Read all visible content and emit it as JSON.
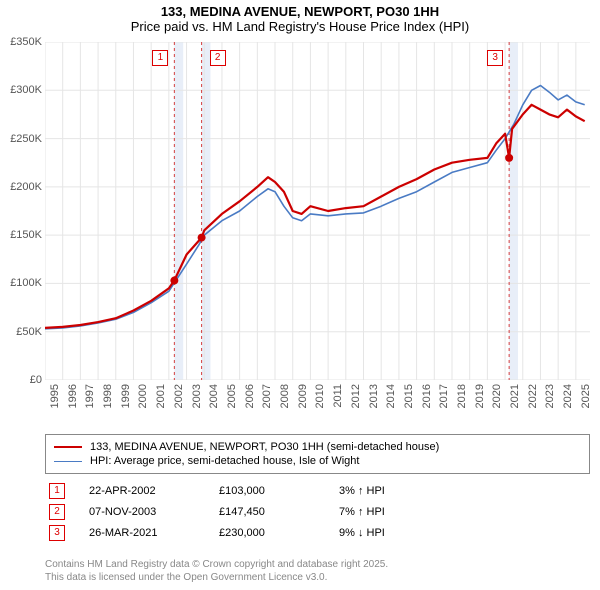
{
  "title": {
    "line1": "133, MEDINA AVENUE, NEWPORT, PO30 1HH",
    "line2": "Price paid vs. HM Land Registry's House Price Index (HPI)",
    "fontsize": 13
  },
  "chart": {
    "type": "line",
    "background_color": "#ffffff",
    "grid_color": "#e5e5e5",
    "text_color": "#555555",
    "xlim": [
      1995,
      2025.8
    ],
    "ylim": [
      0,
      350000
    ],
    "ytick_step": 50000,
    "ytick_labels": [
      "£0",
      "£50K",
      "£100K",
      "£150K",
      "£200K",
      "£250K",
      "£300K",
      "£350K"
    ],
    "xtick_step": 1,
    "xtick_labels": [
      "1995",
      "1996",
      "1997",
      "1998",
      "1999",
      "2000",
      "2001",
      "2002",
      "2003",
      "2004",
      "2005",
      "2006",
      "2007",
      "2008",
      "2009",
      "2010",
      "2011",
      "2012",
      "2013",
      "2014",
      "2015",
      "2016",
      "2017",
      "2018",
      "2019",
      "2020",
      "2021",
      "2022",
      "2023",
      "2024",
      "2025"
    ],
    "series": [
      {
        "name": "133, MEDINA AVENUE, NEWPORT, PO30 1HH (semi-detached house)",
        "color": "#cc0000",
        "line_width": 2.2,
        "data": [
          [
            1995,
            54000
          ],
          [
            1996,
            55000
          ],
          [
            1997,
            57000
          ],
          [
            1998,
            60000
          ],
          [
            1999,
            64000
          ],
          [
            2000,
            72000
          ],
          [
            2001,
            82000
          ],
          [
            2002,
            95000
          ],
          [
            2002.31,
            103000
          ],
          [
            2003,
            130000
          ],
          [
            2003.85,
            147450
          ],
          [
            2004,
            155000
          ],
          [
            2005,
            172000
          ],
          [
            2006,
            185000
          ],
          [
            2007,
            200000
          ],
          [
            2007.6,
            210000
          ],
          [
            2008,
            205000
          ],
          [
            2008.5,
            195000
          ],
          [
            2009,
            175000
          ],
          [
            2009.5,
            172000
          ],
          [
            2010,
            180000
          ],
          [
            2011,
            175000
          ],
          [
            2012,
            178000
          ],
          [
            2013,
            180000
          ],
          [
            2014,
            190000
          ],
          [
            2015,
            200000
          ],
          [
            2016,
            208000
          ],
          [
            2017,
            218000
          ],
          [
            2018,
            225000
          ],
          [
            2019,
            228000
          ],
          [
            2020,
            230000
          ],
          [
            2020.5,
            245000
          ],
          [
            2021,
            255000
          ],
          [
            2021.23,
            230000
          ],
          [
            2021.4,
            260000
          ],
          [
            2022,
            275000
          ],
          [
            2022.5,
            285000
          ],
          [
            2023,
            280000
          ],
          [
            2023.5,
            275000
          ],
          [
            2024,
            272000
          ],
          [
            2024.5,
            280000
          ],
          [
            2025,
            273000
          ],
          [
            2025.5,
            268000
          ]
        ]
      },
      {
        "name": "HPI: Average price, semi-detached house, Isle of Wight",
        "color": "#4a7bc4",
        "line_width": 1.6,
        "data": [
          [
            1995,
            53000
          ],
          [
            1996,
            54000
          ],
          [
            1997,
            56000
          ],
          [
            1998,
            59000
          ],
          [
            1999,
            63000
          ],
          [
            2000,
            70000
          ],
          [
            2001,
            80000
          ],
          [
            2002,
            92000
          ],
          [
            2003,
            120000
          ],
          [
            2003.7,
            140000
          ],
          [
            2004,
            150000
          ],
          [
            2005,
            165000
          ],
          [
            2006,
            175000
          ],
          [
            2007,
            190000
          ],
          [
            2007.6,
            198000
          ],
          [
            2008,
            195000
          ],
          [
            2008.5,
            180000
          ],
          [
            2009,
            168000
          ],
          [
            2009.5,
            165000
          ],
          [
            2010,
            172000
          ],
          [
            2011,
            170000
          ],
          [
            2012,
            172000
          ],
          [
            2013,
            173000
          ],
          [
            2014,
            180000
          ],
          [
            2015,
            188000
          ],
          [
            2016,
            195000
          ],
          [
            2017,
            205000
          ],
          [
            2018,
            215000
          ],
          [
            2019,
            220000
          ],
          [
            2020,
            225000
          ],
          [
            2020.5,
            238000
          ],
          [
            2021,
            250000
          ],
          [
            2021.5,
            265000
          ],
          [
            2022,
            285000
          ],
          [
            2022.5,
            300000
          ],
          [
            2023,
            305000
          ],
          [
            2023.5,
            298000
          ],
          [
            2024,
            290000
          ],
          [
            2024.5,
            295000
          ],
          [
            2025,
            288000
          ],
          [
            2025.5,
            285000
          ]
        ]
      }
    ],
    "markers": {
      "color": "#cc0000",
      "radius": 4,
      "points": [
        {
          "id": "1",
          "x": 2002.31,
          "y": 103000
        },
        {
          "id": "2",
          "x": 2003.85,
          "y": 147450
        },
        {
          "id": "3",
          "x": 2021.23,
          "y": 230000
        }
      ]
    },
    "vband_color": "#e8eef8",
    "vband_width_years": 0.5,
    "vline_color": "#d43f3f",
    "vline_dash": "3,3"
  },
  "legend": {
    "border_color": "#888888",
    "fontsize": 11,
    "items": [
      {
        "color": "#cc0000",
        "label": "133, MEDINA AVENUE, NEWPORT, PO30 1HH (semi-detached house)"
      },
      {
        "color": "#4a7bc4",
        "label": "HPI: Average price, semi-detached house, Isle of Wight"
      }
    ]
  },
  "marker_table": {
    "fontsize": 11,
    "badge_border": "#cc0000",
    "badge_text": "#cc0000",
    "rows": [
      {
        "id": "1",
        "date": "22-APR-2002",
        "price": "£103,000",
        "pct": "3% ↑ HPI"
      },
      {
        "id": "2",
        "date": "07-NOV-2003",
        "price": "£147,450",
        "pct": "7% ↑ HPI"
      },
      {
        "id": "3",
        "date": "26-MAR-2021",
        "price": "£230,000",
        "pct": "9% ↓ HPI"
      }
    ]
  },
  "footer": {
    "fontsize": 10,
    "color": "#888888",
    "line1": "Contains HM Land Registry data © Crown copyright and database right 2025.",
    "line2": "This data is licensed under the Open Government Licence v3.0."
  }
}
